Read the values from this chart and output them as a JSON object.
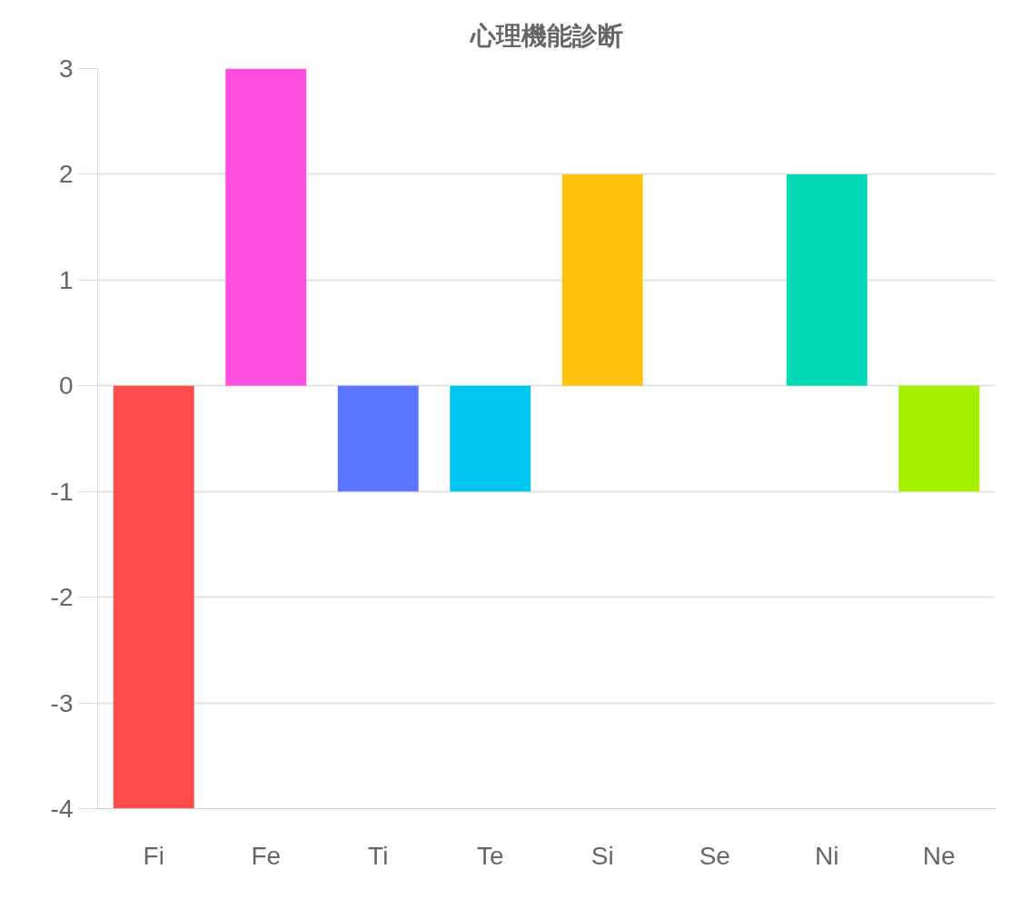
{
  "chart_data": {
    "type": "bar",
    "title": "心理機能診断",
    "categories": [
      "Fi",
      "Fe",
      "Ti",
      "Te",
      "Si",
      "Se",
      "Ni",
      "Ne"
    ],
    "values": [
      -4,
      3,
      -1,
      -1,
      2,
      0,
      2,
      -1
    ],
    "colors": [
      "#ff4d4d",
      "#ff4de0",
      "#5a75ff",
      "#00c8f0",
      "#ffc20e",
      "#ff8c1a",
      "#00d9b5",
      "#a3f000"
    ],
    "ylim": [
      -4,
      3
    ],
    "yticks": [
      -4,
      -3,
      -2,
      -1,
      0,
      1,
      2,
      3
    ],
    "grid": "y"
  }
}
